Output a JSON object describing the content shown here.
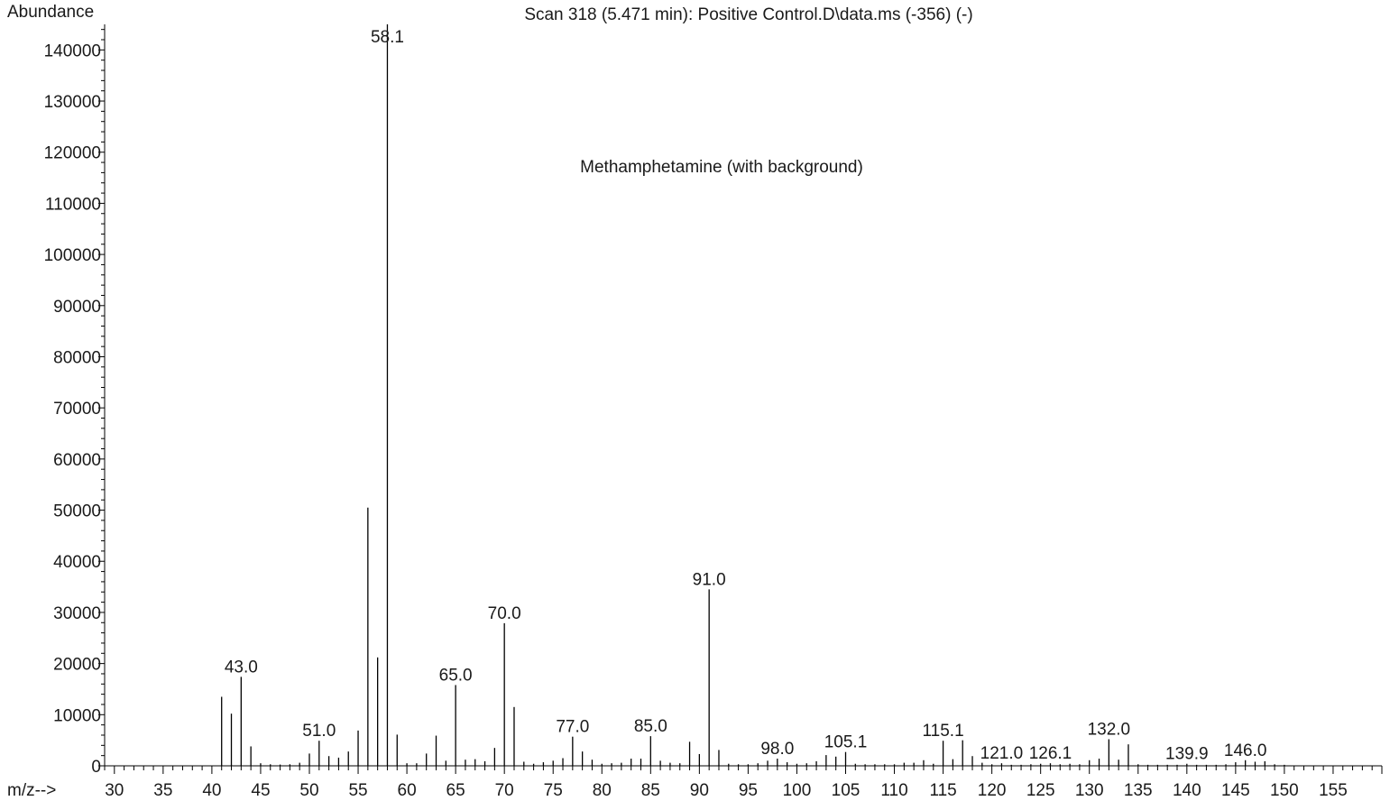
{
  "chart_data": {
    "type": "bar",
    "title": "Scan 318 (5.471 min): Positive Control.D\\data.ms (-356) (-)",
    "annotation": "Methamphetamine (with background)",
    "xlabel": "m/z-->",
    "ylabel": "Abundance",
    "xlim": [
      29,
      160
    ],
    "ylim": [
      0,
      145000
    ],
    "xticks": [
      30,
      35,
      40,
      45,
      50,
      55,
      60,
      65,
      70,
      75,
      80,
      85,
      90,
      95,
      100,
      105,
      110,
      115,
      120,
      125,
      130,
      135,
      140,
      145,
      150,
      155
    ],
    "yticks": [
      0,
      10000,
      20000,
      30000,
      40000,
      50000,
      60000,
      70000,
      80000,
      90000,
      100000,
      110000,
      120000,
      130000,
      140000
    ],
    "peaks": [
      {
        "mz": 41,
        "abundance": 13500
      },
      {
        "mz": 42,
        "abundance": 10200
      },
      {
        "mz": 43,
        "abundance": 17400,
        "label": "43.0"
      },
      {
        "mz": 44,
        "abundance": 3800
      },
      {
        "mz": 45,
        "abundance": 500
      },
      {
        "mz": 46,
        "abundance": 300
      },
      {
        "mz": 47,
        "abundance": 250
      },
      {
        "mz": 48,
        "abundance": 300
      },
      {
        "mz": 49,
        "abundance": 600
      },
      {
        "mz": 50,
        "abundance": 2400
      },
      {
        "mz": 51,
        "abundance": 4900,
        "label": "51.0"
      },
      {
        "mz": 52,
        "abundance": 1900
      },
      {
        "mz": 53,
        "abundance": 1600
      },
      {
        "mz": 54,
        "abundance": 2800
      },
      {
        "mz": 55,
        "abundance": 6900
      },
      {
        "mz": 56,
        "abundance": 50500
      },
      {
        "mz": 57,
        "abundance": 21200
      },
      {
        "mz": 58,
        "abundance": 145000,
        "label": "58.1"
      },
      {
        "mz": 59,
        "abundance": 6100
      },
      {
        "mz": 60,
        "abundance": 500
      },
      {
        "mz": 61,
        "abundance": 500
      },
      {
        "mz": 62,
        "abundance": 2400
      },
      {
        "mz": 63,
        "abundance": 5900
      },
      {
        "mz": 64,
        "abundance": 1000
      },
      {
        "mz": 65,
        "abundance": 15800,
        "label": "65.0"
      },
      {
        "mz": 66,
        "abundance": 1200
      },
      {
        "mz": 67,
        "abundance": 1300
      },
      {
        "mz": 68,
        "abundance": 900
      },
      {
        "mz": 69,
        "abundance": 3500
      },
      {
        "mz": 70,
        "abundance": 27900,
        "label": "70.0"
      },
      {
        "mz": 71,
        "abundance": 11500
      },
      {
        "mz": 72,
        "abundance": 800
      },
      {
        "mz": 73,
        "abundance": 400
      },
      {
        "mz": 74,
        "abundance": 700
      },
      {
        "mz": 75,
        "abundance": 1000
      },
      {
        "mz": 76,
        "abundance": 1500
      },
      {
        "mz": 77,
        "abundance": 5700,
        "label": "77.0"
      },
      {
        "mz": 78,
        "abundance": 2800
      },
      {
        "mz": 79,
        "abundance": 1200
      },
      {
        "mz": 80,
        "abundance": 400
      },
      {
        "mz": 81,
        "abundance": 500
      },
      {
        "mz": 82,
        "abundance": 600
      },
      {
        "mz": 83,
        "abundance": 1400
      },
      {
        "mz": 84,
        "abundance": 1400
      },
      {
        "mz": 85,
        "abundance": 5800,
        "label": "85.0"
      },
      {
        "mz": 86,
        "abundance": 1000
      },
      {
        "mz": 87,
        "abundance": 600
      },
      {
        "mz": 88,
        "abundance": 500
      },
      {
        "mz": 89,
        "abundance": 4700
      },
      {
        "mz": 90,
        "abundance": 2300
      },
      {
        "mz": 91,
        "abundance": 34500,
        "label": "91.0"
      },
      {
        "mz": 92,
        "abundance": 3100
      },
      {
        "mz": 93,
        "abundance": 400
      },
      {
        "mz": 94,
        "abundance": 300
      },
      {
        "mz": 95,
        "abundance": 300
      },
      {
        "mz": 96,
        "abundance": 500
      },
      {
        "mz": 97,
        "abundance": 1000
      },
      {
        "mz": 98,
        "abundance": 1400,
        "label": "98.0"
      },
      {
        "mz": 99,
        "abundance": 700
      },
      {
        "mz": 100,
        "abundance": 400
      },
      {
        "mz": 101,
        "abundance": 500
      },
      {
        "mz": 102,
        "abundance": 900
      },
      {
        "mz": 103,
        "abundance": 2100
      },
      {
        "mz": 104,
        "abundance": 1800
      },
      {
        "mz": 105,
        "abundance": 2700,
        "label": "105.1"
      },
      {
        "mz": 106,
        "abundance": 400
      },
      {
        "mz": 107,
        "abundance": 300
      },
      {
        "mz": 108,
        "abundance": 300
      },
      {
        "mz": 109,
        "abundance": 300
      },
      {
        "mz": 110,
        "abundance": 300
      },
      {
        "mz": 111,
        "abundance": 600
      },
      {
        "mz": 112,
        "abundance": 600
      },
      {
        "mz": 113,
        "abundance": 1100
      },
      {
        "mz": 114,
        "abundance": 400
      },
      {
        "mz": 115,
        "abundance": 4900,
        "label": "115.1"
      },
      {
        "mz": 116,
        "abundance": 1300
      },
      {
        "mz": 117,
        "abundance": 5000
      },
      {
        "mz": 118,
        "abundance": 1900
      },
      {
        "mz": 119,
        "abundance": 600
      },
      {
        "mz": 120,
        "abundance": 300
      },
      {
        "mz": 121,
        "abundance": 500,
        "label": "121.0"
      },
      {
        "mz": 122,
        "abundance": 200
      },
      {
        "mz": 123,
        "abundance": 200
      },
      {
        "mz": 124,
        "abundance": 300
      },
      {
        "mz": 125,
        "abundance": 400
      },
      {
        "mz": 126,
        "abundance": 500,
        "label": "126.1"
      },
      {
        "mz": 127,
        "abundance": 300
      },
      {
        "mz": 128,
        "abundance": 400
      },
      {
        "mz": 129,
        "abundance": 300
      },
      {
        "mz": 130,
        "abundance": 1100
      },
      {
        "mz": 131,
        "abundance": 1400
      },
      {
        "mz": 132,
        "abundance": 5200,
        "label": "132.0"
      },
      {
        "mz": 133,
        "abundance": 1200
      },
      {
        "mz": 134,
        "abundance": 4200
      },
      {
        "mz": 135,
        "abundance": 300
      },
      {
        "mz": 136,
        "abundance": 200
      },
      {
        "mz": 137,
        "abundance": 200
      },
      {
        "mz": 138,
        "abundance": 200
      },
      {
        "mz": 139,
        "abundance": 200
      },
      {
        "mz": 140,
        "abundance": 400,
        "label": "139.9"
      },
      {
        "mz": 141,
        "abundance": 200
      },
      {
        "mz": 142,
        "abundance": 200
      },
      {
        "mz": 143,
        "abundance": 200
      },
      {
        "mz": 144,
        "abundance": 300
      },
      {
        "mz": 145,
        "abundance": 700
      },
      {
        "mz": 146,
        "abundance": 1100,
        "label": "146.0"
      },
      {
        "mz": 147,
        "abundance": 800
      },
      {
        "mz": 148,
        "abundance": 900
      },
      {
        "mz": 149,
        "abundance": 300
      },
      {
        "mz": 150,
        "abundance": 200
      }
    ]
  }
}
